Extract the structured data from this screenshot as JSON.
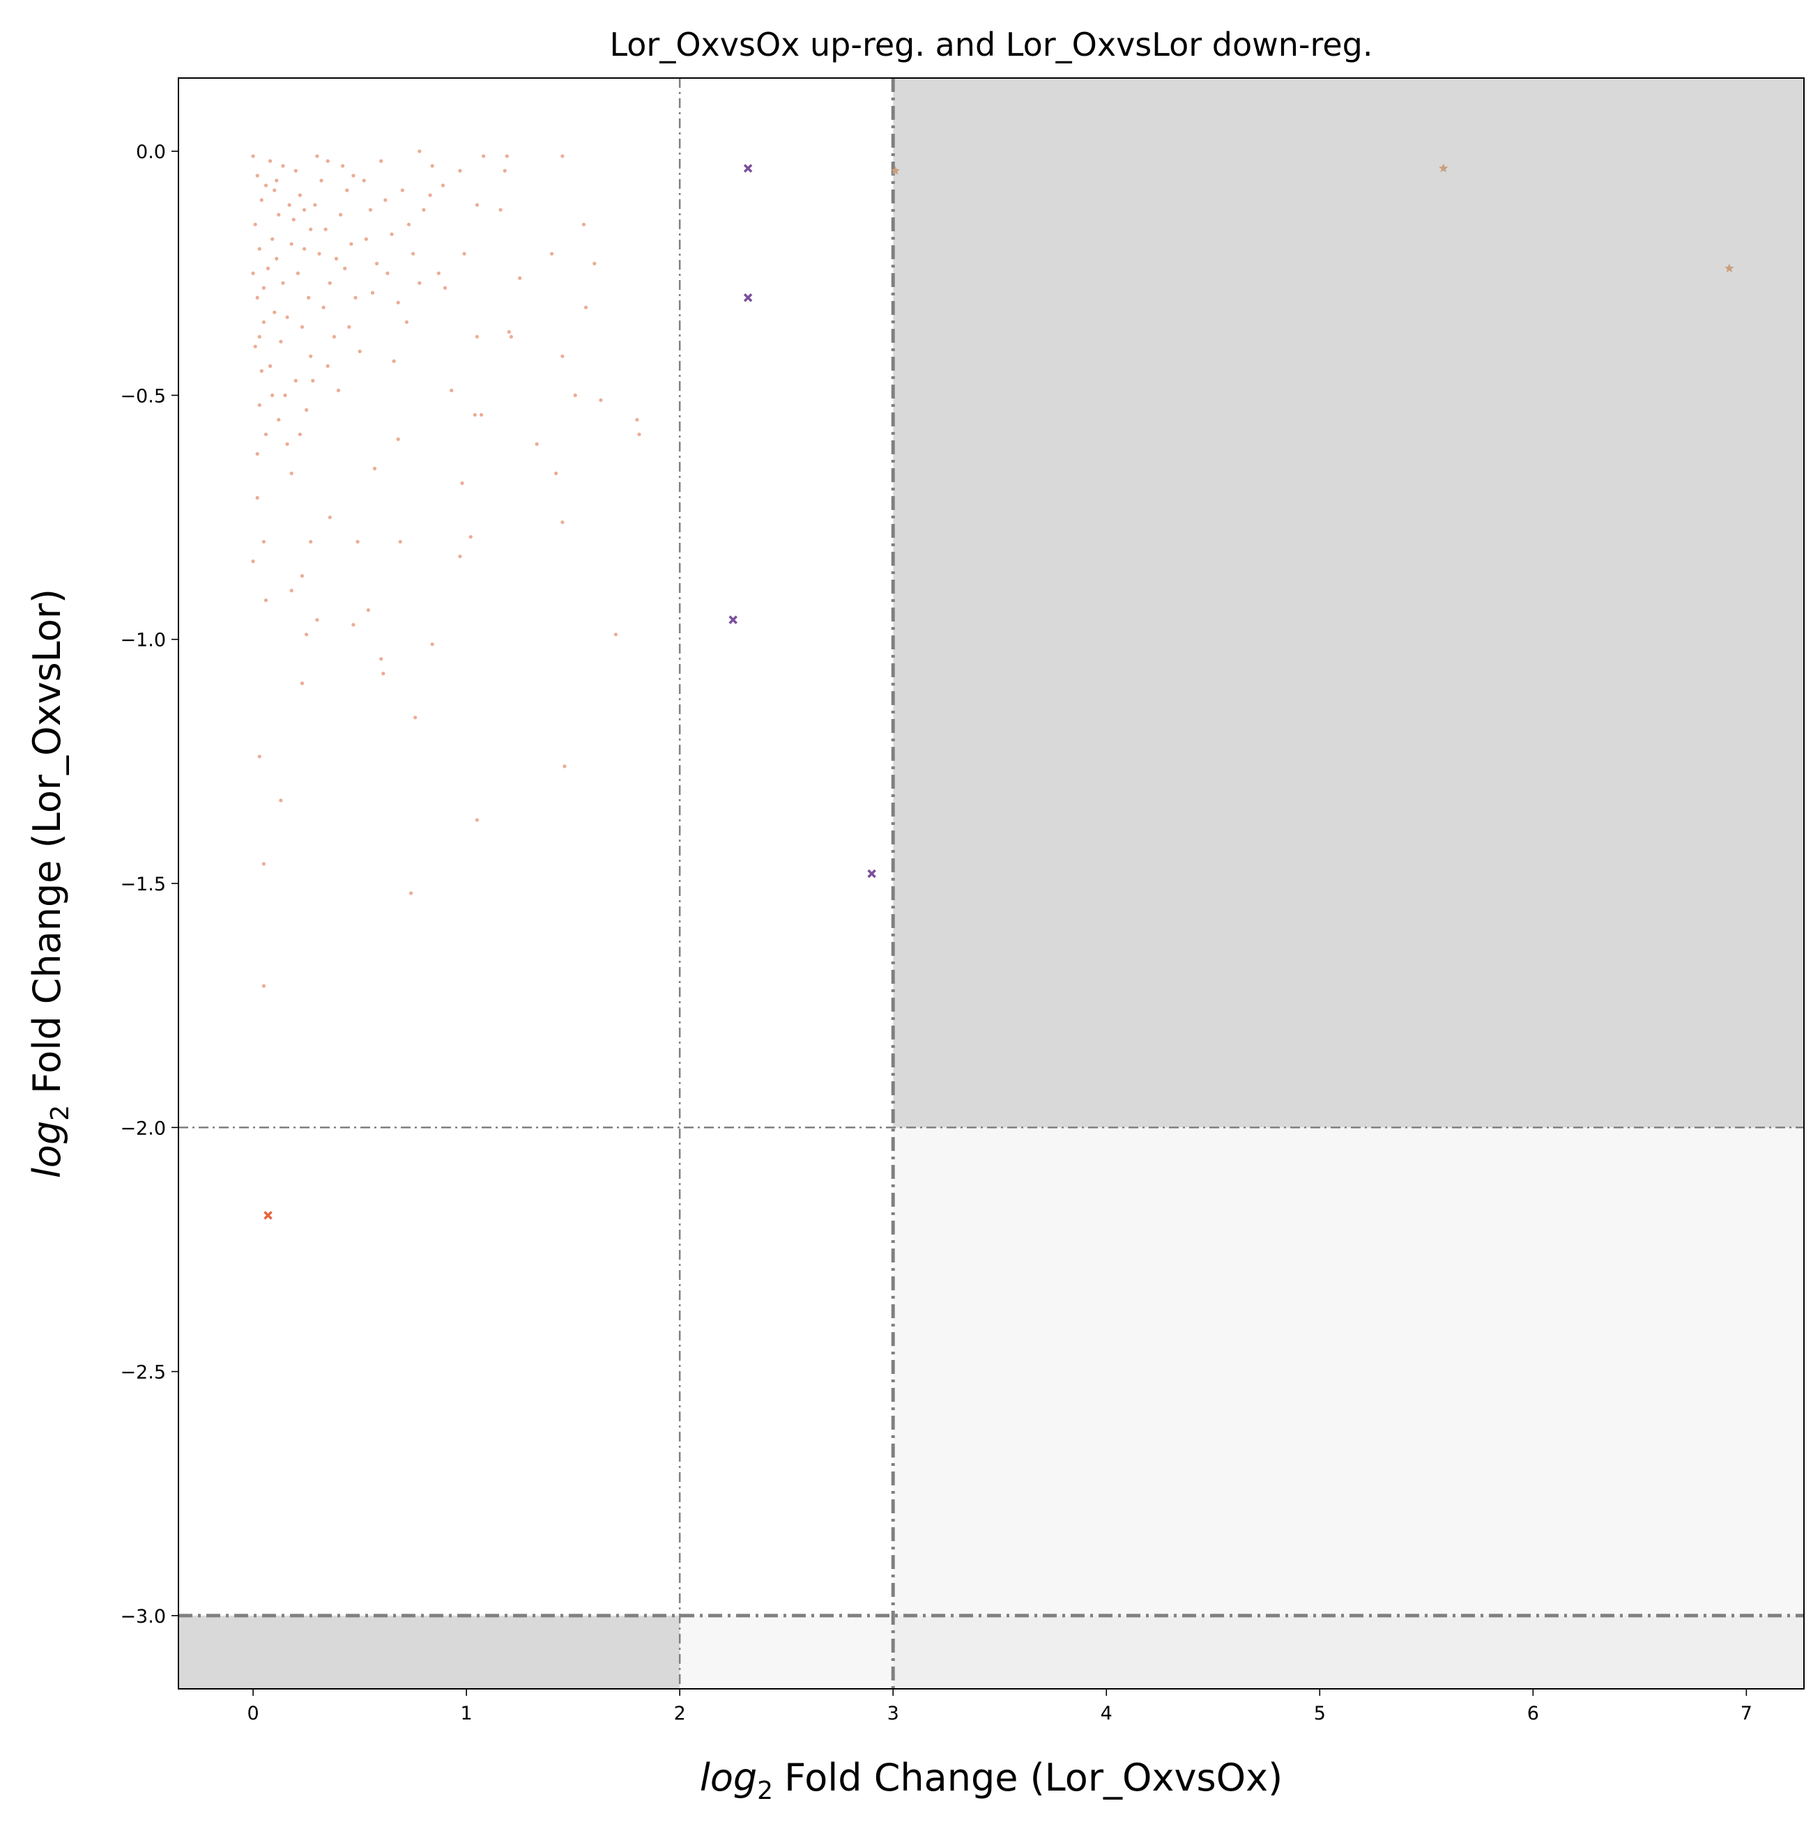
{
  "chart_data": {
    "type": "scatter",
    "title": "Lor_OxvsOx up-reg. and Lor_OxvsLor down-reg.",
    "x_label": {
      "prefix": "log",
      "subscript": "2",
      "text": "Fold Change (Lor_OxvsOx)"
    },
    "y_label": {
      "prefix": "log",
      "subscript": "2",
      "text": "Fold Change (Lor_OxvsLor)"
    },
    "xlim": [
      -0.35,
      7.27
    ],
    "ylim": [
      -3.15,
      0.15
    ],
    "xticks": [
      0,
      1,
      2,
      3,
      4,
      5,
      6,
      7
    ],
    "yticks": [
      {
        "value": 0,
        "label": "0.0"
      },
      {
        "value": -0.5,
        "label": "−0.5"
      },
      {
        "value": -1,
        "label": "−1.0"
      },
      {
        "value": -1.5,
        "label": "−1.5"
      },
      {
        "value": -2,
        "label": "−2.0"
      },
      {
        "value": -2.5,
        "label": "−2.5"
      },
      {
        "value": -3,
        "label": "−3.0"
      }
    ],
    "thresholds": {
      "x": [
        2,
        3
      ],
      "y": [
        -2,
        -3
      ]
    },
    "series": [
      {
        "color": "#e0805a",
        "marker": "dot",
        "x": [
          0,
          0.03,
          0.05,
          0.05,
          0.13,
          0.23,
          1.05,
          0.74,
          0.76,
          0.6,
          0.61,
          0.84,
          1.46,
          1.7,
          0.25,
          0.3,
          0.47,
          0.54,
          0.06,
          0.23,
          0.18,
          0.05,
          0.27,
          0.49,
          0.69,
          0.97,
          1.02,
          0.36,
          1.45,
          0.02,
          0.98,
          1.42,
          0.57,
          1.33,
          0.68,
          1.8,
          1.81,
          1.63,
          1.51,
          1.04,
          1.07,
          0.93,
          1.45,
          1.21,
          1.2,
          1.05,
          1.56,
          1.6,
          1.55,
          1.4,
          1.25,
          0.99,
          0.9,
          0.87,
          1.05,
          1.16,
          1.18,
          1.45,
          1.19,
          1.08,
          0.97,
          0.89,
          0.84,
          0.78,
          0.83,
          0,
          0.02,
          0.04,
          0.01,
          0.03,
          0,
          0.02,
          0.05,
          0.01,
          0.04,
          0.03,
          0.06,
          0.02,
          0.08,
          0.1,
          0.12,
          0.09,
          0.11,
          0.14,
          0.1,
          0.13,
          0.08,
          0.15,
          0.12,
          0.16,
          0.18,
          0.2,
          0.22,
          0.19,
          0.24,
          0.21,
          0.26,
          0.23,
          0.27,
          0.2,
          0.25,
          0.22,
          0.3,
          0.32,
          0.29,
          0.34,
          0.31,
          0.36,
          0.33,
          0.38,
          0.35,
          0.4,
          0.42,
          0.44,
          0.41,
          0.46,
          0.43,
          0.48,
          0.45,
          0.5,
          0.52,
          0.55,
          0.53,
          0.58,
          0.56,
          0.6,
          0.62,
          0.65,
          0.63,
          0.68,
          0.66,
          0.7,
          0.73,
          0.75,
          0.72,
          0.78,
          0.8,
          0.06,
          0.14,
          0.17,
          0.07,
          0.16,
          0.05,
          0.27,
          0.35,
          0.47,
          0.18,
          0.09,
          0.28,
          0.39,
          0.11,
          0.24,
          0.03
        ],
        "y": [
          -0.84,
          -1.24,
          -1.46,
          -1.71,
          -1.33,
          -1.09,
          -1.37,
          -1.52,
          -1.16,
          -1.04,
          -1.07,
          -1.01,
          -1.26,
          -0.99,
          -0.99,
          -0.96,
          -0.97,
          -0.94,
          -0.92,
          -0.87,
          -0.9,
          -0.8,
          -0.8,
          -0.8,
          -0.8,
          -0.83,
          -0.79,
          -0.75,
          -0.76,
          -0.71,
          -0.68,
          -0.66,
          -0.65,
          -0.6,
          -0.59,
          -0.55,
          -0.58,
          -0.51,
          -0.5,
          -0.54,
          -0.54,
          -0.49,
          -0.42,
          -0.38,
          -0.37,
          -0.38,
          -0.32,
          -0.23,
          -0.15,
          -0.21,
          -0.26,
          -0.21,
          -0.28,
          -0.25,
          -0.11,
          -0.12,
          -0.04,
          -0.01,
          -0.01,
          -0.01,
          -0.04,
          -0.07,
          -0.03,
          0,
          -0.09,
          -0.01,
          -0.05,
          -0.1,
          -0.15,
          -0.2,
          -0.25,
          -0.3,
          -0.35,
          -0.4,
          -0.45,
          -0.52,
          -0.58,
          -0.62,
          -0.02,
          -0.08,
          -0.13,
          -0.18,
          -0.22,
          -0.27,
          -0.33,
          -0.39,
          -0.44,
          -0.5,
          -0.55,
          -0.6,
          -0.66,
          -0.04,
          -0.09,
          -0.14,
          -0.2,
          -0.25,
          -0.3,
          -0.36,
          -0.42,
          -0.47,
          -0.53,
          -0.58,
          -0.01,
          -0.06,
          -0.11,
          -0.16,
          -0.21,
          -0.27,
          -0.32,
          -0.38,
          -0.44,
          -0.49,
          -0.03,
          -0.08,
          -0.13,
          -0.19,
          -0.24,
          -0.3,
          -0.36,
          -0.41,
          -0.06,
          -0.12,
          -0.18,
          -0.23,
          -0.29,
          -0.02,
          -0.1,
          -0.17,
          -0.25,
          -0.31,
          -0.43,
          -0.08,
          -0.15,
          -0.21,
          -0.35,
          -0.27,
          -0.12,
          -0.07,
          -0.03,
          -0.11,
          -0.24,
          -0.34,
          -0.28,
          -0.16,
          -0.02,
          -0.05,
          -0.19,
          -0.5,
          -0.47,
          -0.22,
          -0.06,
          -0.12,
          -0.38
        ]
      },
      {
        "color": "#e8643c",
        "marker": "x",
        "x": [
          0.07
        ],
        "y": [
          -2.18
        ]
      },
      {
        "color": "#7b4f9c",
        "marker": "x",
        "x": [
          2.32,
          2.32,
          2.25,
          2.9
        ],
        "y": [
          -0.035,
          -0.3,
          -0.96,
          -1.48
        ]
      },
      {
        "color": "#c9a07e",
        "marker": "star",
        "x": [
          3.01,
          5.58,
          6.92
        ],
        "y": [
          -0.04,
          -0.035,
          -0.24
        ]
      }
    ]
  }
}
